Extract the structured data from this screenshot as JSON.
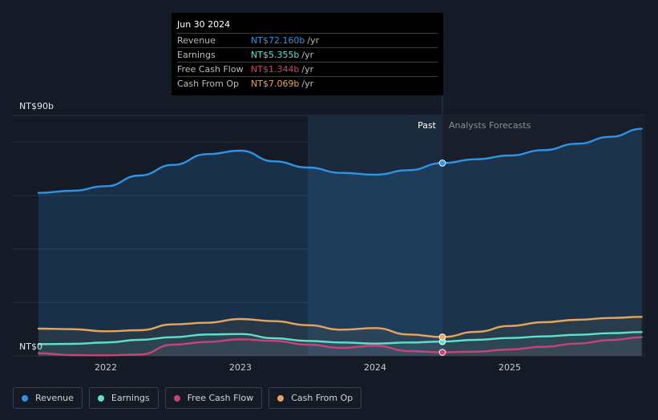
{
  "chart_data": {
    "type": "line",
    "ylabel_top": "NT$90b",
    "ylabel_bottom": "NT$0",
    "ylim": [
      0,
      90
    ],
    "xlim": [
      2021.5,
      2025.98
    ],
    "x_ticks": [
      "2022",
      "2023",
      "2024",
      "2025"
    ],
    "x_tick_values": [
      2022,
      2023,
      2024,
      2025
    ],
    "past_label": "Past",
    "forecast_label": "Analysts Forecasts",
    "divider_x": 2024.5,
    "shade_start_x": 2023.5,
    "series": [
      {
        "name": "Revenue",
        "color": "#2f94e6",
        "x": [
          2021.5,
          2021.75,
          2022.0,
          2022.25,
          2022.5,
          2022.75,
          2023.0,
          2023.25,
          2023.5,
          2023.75,
          2024.0,
          2024.25,
          2024.5,
          2024.75,
          2025.0,
          2025.25,
          2025.5,
          2025.75,
          2025.98
        ],
        "y": [
          61.0,
          61.8,
          63.5,
          67.5,
          71.5,
          75.5,
          76.8,
          72.8,
          70.5,
          68.5,
          67.8,
          69.5,
          72.16,
          73.6,
          75.0,
          77.0,
          79.4,
          82.0,
          85.0
        ]
      },
      {
        "name": "Earnings",
        "color": "#5fe0cc",
        "x": [
          2021.5,
          2021.75,
          2022.0,
          2022.25,
          2022.5,
          2022.75,
          2023.0,
          2023.25,
          2023.5,
          2023.75,
          2024.0,
          2024.25,
          2024.5,
          2024.75,
          2025.0,
          2025.25,
          2025.5,
          2025.75,
          2025.98
        ],
        "y": [
          4.4,
          4.5,
          5.0,
          6.0,
          7.0,
          8.0,
          8.2,
          6.6,
          5.6,
          5.0,
          4.6,
          5.0,
          5.355,
          6.0,
          6.7,
          7.3,
          7.9,
          8.5,
          8.9
        ]
      },
      {
        "name": "Free Cash Flow",
        "color": "#c9437a",
        "x": [
          2021.5,
          2021.75,
          2022.0,
          2022.25,
          2022.5,
          2022.75,
          2023.0,
          2023.25,
          2023.5,
          2023.75,
          2024.0,
          2024.25,
          2024.5,
          2024.75,
          2025.0,
          2025.25,
          2025.5,
          2025.75,
          2025.98
        ],
        "y": [
          1.0,
          0.3,
          0.2,
          0.5,
          4.2,
          5.2,
          6.2,
          5.6,
          4.2,
          3.0,
          3.8,
          1.8,
          1.344,
          1.6,
          2.4,
          3.4,
          4.6,
          5.9,
          7.0
        ]
      },
      {
        "name": "Cash From Op",
        "color": "#e7a55b",
        "x": [
          2021.5,
          2021.75,
          2022.0,
          2022.25,
          2022.5,
          2022.75,
          2023.0,
          2023.25,
          2023.5,
          2023.75,
          2024.0,
          2024.25,
          2024.5,
          2024.75,
          2025.0,
          2025.25,
          2025.5,
          2025.75,
          2025.98
        ],
        "y": [
          10.2,
          10.0,
          9.2,
          9.6,
          11.8,
          12.4,
          13.8,
          13.0,
          11.5,
          9.8,
          10.4,
          8.0,
          7.069,
          9.0,
          11.2,
          12.6,
          13.5,
          14.2,
          14.6
        ]
      }
    ],
    "marker_x": 2024.5
  },
  "tooltip": {
    "date": "Jun 30 2024",
    "unit": "/yr",
    "rows": [
      {
        "label": "Revenue",
        "value": "NT$72.160b",
        "color": "#2f94e6"
      },
      {
        "label": "Earnings",
        "value": "NT$5.355b",
        "color": "#5fe0cc"
      },
      {
        "label": "Free Cash Flow",
        "value": "NT$1.344b",
        "color": "#c9437a"
      },
      {
        "label": "Cash From Op",
        "value": "NT$7.069b",
        "color": "#e7a55b"
      }
    ]
  },
  "legend": [
    {
      "label": "Revenue",
      "color": "#2f94e6"
    },
    {
      "label": "Earnings",
      "color": "#5fe0cc"
    },
    {
      "label": "Free Cash Flow",
      "color": "#c9437a"
    },
    {
      "label": "Cash From Op",
      "color": "#e7a55b"
    }
  ]
}
